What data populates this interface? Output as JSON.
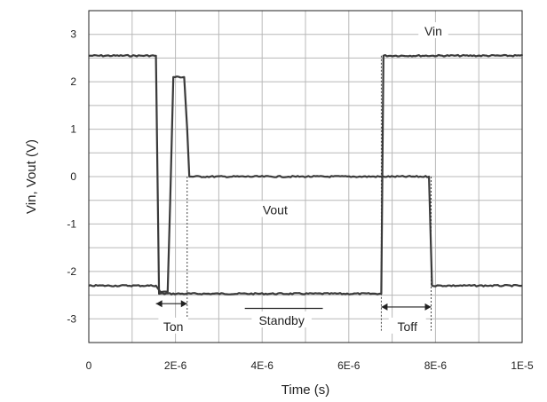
{
  "chart_data": {
    "type": "line",
    "xlabel": "Time (s)",
    "ylabel": "Vin, Vout (V)",
    "xlim": [
      0,
      1e-05
    ],
    "ylim": [
      -3.5,
      3.5
    ],
    "grid": true,
    "xticks": [
      {
        "value": 0,
        "label": "0"
      },
      {
        "value": 2e-06,
        "label": "2E-6"
      },
      {
        "value": 4e-06,
        "label": "4E-6"
      },
      {
        "value": 6e-06,
        "label": "6E-6"
      },
      {
        "value": 8e-06,
        "label": "8E-6"
      },
      {
        "value": 1e-05,
        "label": "1E-5"
      }
    ],
    "yticks": [
      {
        "value": 3,
        "label": "3"
      },
      {
        "value": 2,
        "label": "2"
      },
      {
        "value": 1,
        "label": "1"
      },
      {
        "value": 0,
        "label": "0"
      },
      {
        "value": -1,
        "label": "-1"
      },
      {
        "value": -2,
        "label": "-2"
      },
      {
        "value": -3,
        "label": "-3"
      }
    ],
    "series": [
      {
        "name": "Vin",
        "color": "#3a3a3a",
        "x": [
          0,
          1.55e-06,
          1.62e-06,
          6.75e-06,
          6.8e-06,
          1e-05
        ],
        "y": [
          2.55,
          2.55,
          -2.47,
          -2.47,
          2.55,
          2.55
        ]
      },
      {
        "name": "Vout",
        "color": "#3a3a3a",
        "x": [
          0,
          1.55e-06,
          1.65e-06,
          1.82e-06,
          1.88e-06,
          1.95e-06,
          2.2e-06,
          2.27e-06,
          2.32e-06,
          7.85e-06,
          7.92e-06,
          1e-05
        ],
        "y": [
          -2.3,
          -2.3,
          -2.43,
          -2.43,
          -0.5,
          2.1,
          2.1,
          1.0,
          0.0,
          0.0,
          -2.3,
          -2.3
        ]
      }
    ],
    "annotations": [
      {
        "text": "Vin",
        "x": 7.95e-06,
        "y": 3.05
      },
      {
        "text": "Vout",
        "x": 4.3e-06,
        "y": -0.72
      },
      {
        "text": "Ton",
        "x": 1.95e-06,
        "y": -3.18
      },
      {
        "text": "Standby",
        "x": 4.45e-06,
        "y": -3.05
      },
      {
        "text": "Toff",
        "x": 7.35e-06,
        "y": -3.18
      }
    ],
    "markers": {
      "ton": {
        "from": 1.55e-06,
        "to": 2.27e-06,
        "y": -2.68
      },
      "toff": {
        "from": 6.75e-06,
        "to": 7.9e-06,
        "y": -2.75
      },
      "standby_bar": {
        "from": 3.6e-06,
        "to": 5.4e-06,
        "y": -2.78
      }
    }
  }
}
